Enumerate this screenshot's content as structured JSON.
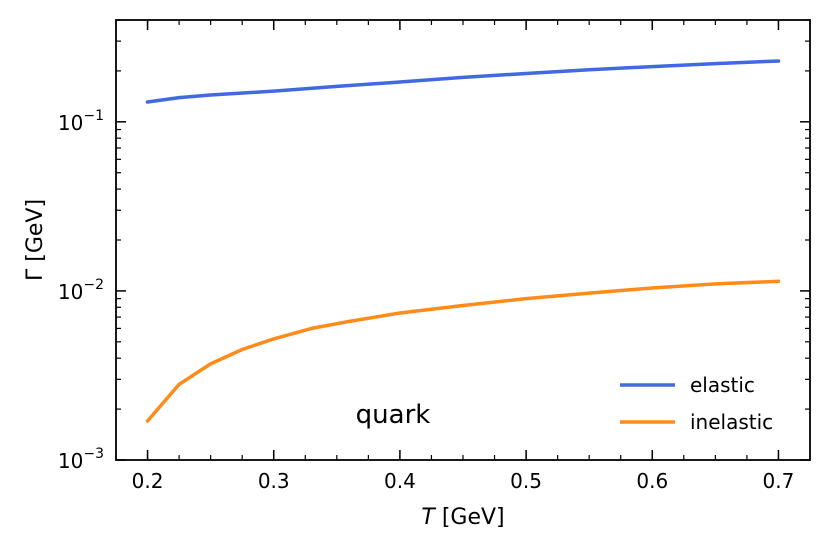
{
  "chart_data": {
    "type": "line",
    "title": "",
    "annotation": "quark",
    "xlabel_italic": "T",
    "xlabel_unit": "[GeV]",
    "ylabel_symbol": "Γ",
    "ylabel_unit": "[GeV]",
    "xlim": [
      0.175,
      0.725
    ],
    "ylim": [
      0.001,
      0.4
    ],
    "yscale": "log",
    "xticks": [
      0.2,
      0.3,
      0.4,
      0.5,
      0.6,
      0.7
    ],
    "xtick_labels": [
      "0.2",
      "0.3",
      "0.4",
      "0.5",
      "0.6",
      "0.7"
    ],
    "yticks": [
      {
        "value": 0.1,
        "base": "10",
        "exp": "−1"
      },
      {
        "value": 0.01,
        "base": "10",
        "exp": "−2"
      },
      {
        "value": 0.001,
        "base": "10",
        "exp": "−3"
      }
    ],
    "legend_position": "lower-right",
    "series": [
      {
        "name": "elastic",
        "color": "#4169e1",
        "x": [
          0.2,
          0.225,
          0.25,
          0.3,
          0.35,
          0.4,
          0.45,
          0.5,
          0.55,
          0.6,
          0.65,
          0.7
        ],
        "y": [
          0.131,
          0.139,
          0.144,
          0.152,
          0.162,
          0.172,
          0.183,
          0.193,
          0.203,
          0.212,
          0.221,
          0.229
        ]
      },
      {
        "name": "inelastic",
        "color": "#ff8c1a",
        "x": [
          0.2,
          0.225,
          0.25,
          0.275,
          0.3,
          0.33,
          0.36,
          0.4,
          0.45,
          0.5,
          0.55,
          0.6,
          0.65,
          0.7
        ],
        "y": [
          0.0017,
          0.0028,
          0.0037,
          0.0045,
          0.0052,
          0.006,
          0.0066,
          0.0074,
          0.0082,
          0.009,
          0.0097,
          0.0104,
          0.011,
          0.0114
        ]
      }
    ]
  }
}
